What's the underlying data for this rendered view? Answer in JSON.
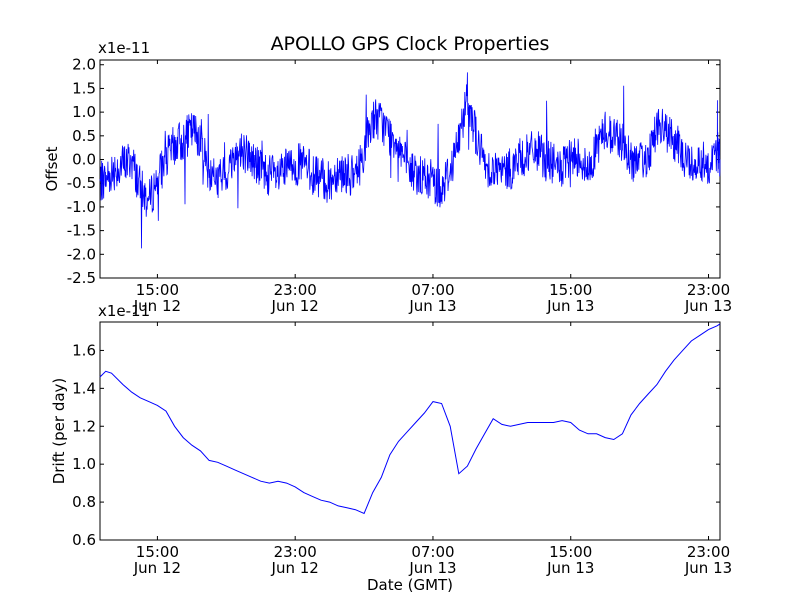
{
  "figure": {
    "title": "APOLLO GPS Clock Properties",
    "line_color": "#0000ff",
    "background": "#ffffff"
  },
  "chart_data": [
    {
      "type": "line",
      "title": "APOLLO GPS Clock Properties",
      "xlabel": "",
      "ylabel": "Offset",
      "y_scale_note": "x1e-11",
      "xlim": [
        "Jun 12 11:40",
        "Jun 13 23:40"
      ],
      "ylim": [
        -2.5,
        2.1
      ],
      "grid": false,
      "yticks": [
        "2.0",
        "1.5",
        "1.0",
        "0.5",
        "0.0",
        "-0.5",
        "-1.0",
        "-1.5",
        "-2.0",
        "-2.5"
      ],
      "xticks": [
        {
          "time": "15:00",
          "date": "Jun 12"
        },
        {
          "time": "23:00",
          "date": "Jun 12"
        },
        {
          "time": "07:00",
          "date": "Jun 13"
        },
        {
          "time": "15:00",
          "date": "Jun 13"
        },
        {
          "time": "23:00",
          "date": "Jun 13"
        }
      ],
      "series": [
        {
          "x": [
            "Jun 12 11:40",
            "Jun 12 12:00",
            "Jun 12 12:30",
            "Jun 12 13:00",
            "Jun 12 13:30",
            "Jun 12 14:00",
            "Jun 12 14:30",
            "Jun 12 15:00",
            "Jun 12 15:30",
            "Jun 12 16:00",
            "Jun 12 16:30",
            "Jun 12 17:00",
            "Jun 12 17:30",
            "Jun 12 18:00",
            "Jun 12 18:30",
            "Jun 12 19:00",
            "Jun 12 19:30",
            "Jun 12 20:00",
            "Jun 12 20:30",
            "Jun 12 21:00",
            "Jun 12 21:30",
            "Jun 12 22:00",
            "Jun 12 22:30",
            "Jun 12 23:00",
            "Jun 12 23:30",
            "Jun 13 00:00",
            "Jun 13 00:30",
            "Jun 13 01:00",
            "Jun 13 01:30",
            "Jun 13 02:00",
            "Jun 13 02:30",
            "Jun 13 03:00",
            "Jun 13 03:30",
            "Jun 13 04:00",
            "Jun 13 04:30",
            "Jun 13 05:00",
            "Jun 13 05:30",
            "Jun 13 06:00",
            "Jun 13 06:30",
            "Jun 13 07:00",
            "Jun 13 07:30",
            "Jun 13 08:00",
            "Jun 13 08:30",
            "Jun 13 09:00",
            "Jun 13 09:30",
            "Jun 13 10:00",
            "Jun 13 10:30",
            "Jun 13 11:00",
            "Jun 13 11:30",
            "Jun 13 12:00",
            "Jun 13 12:30",
            "Jun 13 13:00",
            "Jun 13 13:30",
            "Jun 13 14:00",
            "Jun 13 14:30",
            "Jun 13 15:00",
            "Jun 13 15:30",
            "Jun 13 16:00",
            "Jun 13 16:30",
            "Jun 13 17:00",
            "Jun 13 17:30",
            "Jun 13 18:00",
            "Jun 13 18:30",
            "Jun 13 19:00",
            "Jun 13 19:30",
            "Jun 13 20:00",
            "Jun 13 20:30",
            "Jun 13 21:00",
            "Jun 13 21:30",
            "Jun 13 22:00",
            "Jun 13 22:30",
            "Jun 13 23:00",
            "Jun 13 23:30",
            "Jun 13 23:40"
          ],
          "y": [
            -0.5,
            -0.4,
            -0.2,
            -0.1,
            0.0,
            -0.6,
            -0.9,
            -0.4,
            0.0,
            0.3,
            0.4,
            0.6,
            0.5,
            -0.3,
            -0.4,
            -0.3,
            0.1,
            0.2,
            0.0,
            -0.2,
            -0.3,
            -0.4,
            -0.2,
            -0.1,
            -0.1,
            -0.3,
            -0.4,
            -0.5,
            -0.2,
            -0.3,
            -0.4,
            0.2,
            0.9,
            0.8,
            0.5,
            0.4,
            -0.2,
            -0.3,
            -0.4,
            -0.5,
            -0.6,
            -0.2,
            0.4,
            1.4,
            0.5,
            -0.1,
            -0.2,
            -0.3,
            -0.2,
            0.0,
            0.1,
            0.2,
            0.0,
            -0.1,
            -0.2,
            0.0,
            0.1,
            -0.3,
            0.3,
            0.6,
            0.5,
            0.4,
            0.0,
            -0.1,
            0.1,
            0.7,
            0.6,
            0.4,
            0.1,
            -0.1,
            0.0,
            -0.1,
            0.2,
            0.0
          ]
        }
      ]
    },
    {
      "type": "line",
      "xlabel": "Date (GMT)",
      "ylabel": "Drift (per day)",
      "y_scale_note": "x1e-11",
      "xlim": [
        "Jun 12 11:40",
        "Jun 13 23:40"
      ],
      "ylim": [
        0.6,
        1.75
      ],
      "grid": false,
      "yticks": [
        "1.6",
        "1.4",
        "1.2",
        "1.0",
        "0.8",
        "0.6"
      ],
      "xticks": [
        {
          "time": "15:00",
          "date": "Jun 12"
        },
        {
          "time": "23:00",
          "date": "Jun 12"
        },
        {
          "time": "07:00",
          "date": "Jun 13"
        },
        {
          "time": "15:00",
          "date": "Jun 13"
        },
        {
          "time": "23:00",
          "date": "Jun 13"
        }
      ],
      "series": [
        {
          "x": [
            "Jun 12 11:40",
            "Jun 12 12:00",
            "Jun 12 12:20",
            "Jun 12 13:00",
            "Jun 12 13:30",
            "Jun 12 14:00",
            "Jun 12 14:30",
            "Jun 12 15:00",
            "Jun 12 15:30",
            "Jun 12 16:00",
            "Jun 12 16:30",
            "Jun 12 17:00",
            "Jun 12 17:30",
            "Jun 12 18:00",
            "Jun 12 18:30",
            "Jun 12 19:00",
            "Jun 12 19:30",
            "Jun 12 20:00",
            "Jun 12 20:30",
            "Jun 12 21:00",
            "Jun 12 21:30",
            "Jun 12 22:00",
            "Jun 12 22:30",
            "Jun 12 23:00",
            "Jun 12 23:30",
            "Jun 13 00:00",
            "Jun 13 00:30",
            "Jun 13 01:00",
            "Jun 13 01:30",
            "Jun 13 02:00",
            "Jun 13 02:30",
            "Jun 13 03:00",
            "Jun 13 03:30",
            "Jun 13 04:00",
            "Jun 13 04:30",
            "Jun 13 05:00",
            "Jun 13 05:30",
            "Jun 13 06:00",
            "Jun 13 06:30",
            "Jun 13 07:00",
            "Jun 13 07:30",
            "Jun 13 08:00",
            "Jun 13 08:30",
            "Jun 13 09:00",
            "Jun 13 09:30",
            "Jun 13 10:00",
            "Jun 13 10:30",
            "Jun 13 11:00",
            "Jun 13 11:30",
            "Jun 13 12:00",
            "Jun 13 12:30",
            "Jun 13 13:00",
            "Jun 13 13:30",
            "Jun 13 14:00",
            "Jun 13 14:30",
            "Jun 13 15:00",
            "Jun 13 15:30",
            "Jun 13 16:00",
            "Jun 13 16:30",
            "Jun 13 17:00",
            "Jun 13 17:30",
            "Jun 13 18:00",
            "Jun 13 18:30",
            "Jun 13 19:00",
            "Jun 13 19:30",
            "Jun 13 20:00",
            "Jun 13 20:30",
            "Jun 13 21:00",
            "Jun 13 21:30",
            "Jun 13 22:00",
            "Jun 13 22:30",
            "Jun 13 23:00",
            "Jun 13 23:30",
            "Jun 13 23:40"
          ],
          "y": [
            1.46,
            1.49,
            1.48,
            1.42,
            1.38,
            1.35,
            1.33,
            1.31,
            1.28,
            1.2,
            1.14,
            1.1,
            1.07,
            1.02,
            1.01,
            0.99,
            0.97,
            0.95,
            0.93,
            0.91,
            0.9,
            0.91,
            0.9,
            0.88,
            0.85,
            0.83,
            0.81,
            0.8,
            0.78,
            0.77,
            0.76,
            0.74,
            0.85,
            0.93,
            1.05,
            1.12,
            1.17,
            1.22,
            1.27,
            1.33,
            1.32,
            1.2,
            0.95,
            0.99,
            1.08,
            1.16,
            1.24,
            1.21,
            1.2,
            1.21,
            1.22,
            1.22,
            1.22,
            1.22,
            1.23,
            1.22,
            1.18,
            1.16,
            1.16,
            1.14,
            1.13,
            1.16,
            1.26,
            1.32,
            1.37,
            1.42,
            1.49,
            1.55,
            1.6,
            1.65,
            1.68,
            1.71,
            1.73,
            1.74
          ]
        }
      ]
    }
  ]
}
